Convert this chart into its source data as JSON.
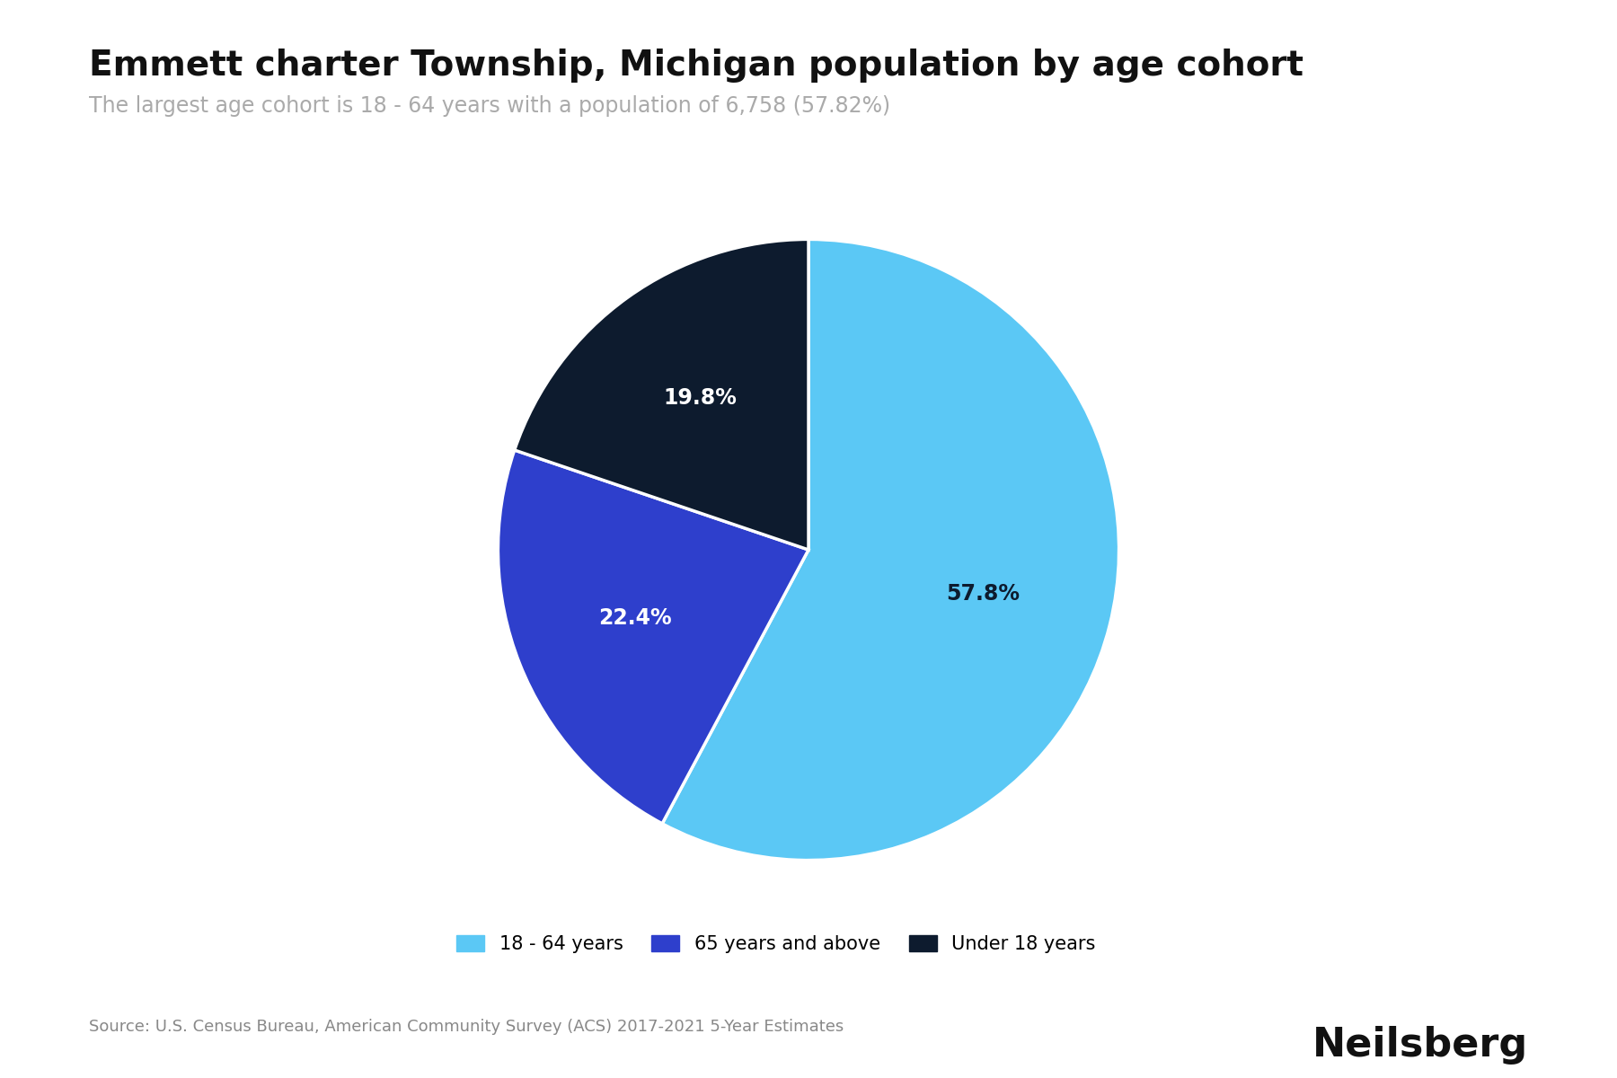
{
  "title": "Emmett charter Township, Michigan population by age cohort",
  "subtitle": "The largest age cohort is 18 - 64 years with a population of 6,758 (57.82%)",
  "labels": [
    "18 - 64 years",
    "65 years and above",
    "Under 18 years"
  ],
  "values": [
    57.82,
    22.4,
    19.8
  ],
  "colors": [
    "#5BC8F5",
    "#2E3FCC",
    "#0D1B2E"
  ],
  "autopct_labels": [
    "57.8%",
    "22.4%",
    "19.8%"
  ],
  "label_colors": [
    "#0D1B2E",
    "#ffffff",
    "#ffffff"
  ],
  "source": "Source: U.S. Census Bureau, American Community Survey (ACS) 2017-2021 5-Year Estimates",
  "brand": "Neilsberg",
  "background_color": "#ffffff",
  "title_fontsize": 28,
  "subtitle_fontsize": 17,
  "autopct_fontsize": 17,
  "legend_fontsize": 15,
  "source_fontsize": 13,
  "brand_fontsize": 32,
  "startangle": 90
}
